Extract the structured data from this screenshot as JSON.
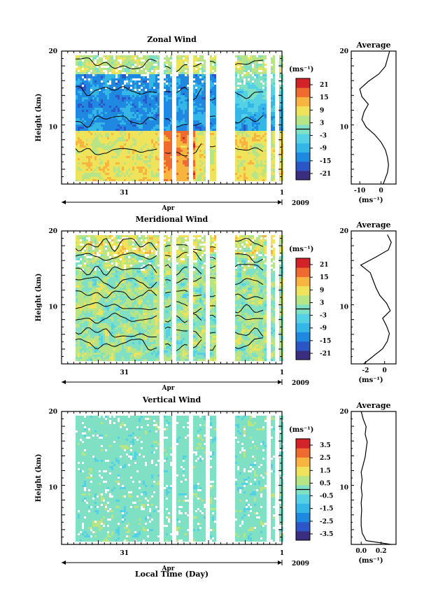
{
  "colors": {
    "palette": [
      "#3b2e7e",
      "#2c55c8",
      "#1f88e0",
      "#34b6e6",
      "#55d1e6",
      "#7fe0c4",
      "#b6e486",
      "#eee35a",
      "#f7b43e",
      "#ee6a2e",
      "#d2232a"
    ],
    "zero_contour": "#000000",
    "missing": "#ffffff"
  },
  "chart_data": [
    {
      "type": "heatmap",
      "name_key": "zonal",
      "title": "Zonal Wind",
      "ylabel": "Height (km)",
      "yticks": [
        "20",
        "10"
      ],
      "ylim": [
        2.5,
        20
      ],
      "xticks": [
        "31",
        "1"
      ],
      "month_label": "Apr",
      "year_label": "2009",
      "xlabel": "",
      "colorbar_unit": "(ms⁻¹)",
      "colorbar_labels": [
        "21",
        "15",
        "9",
        "3",
        "-3",
        "-9",
        "-15",
        "-21"
      ],
      "colorbar_range": [
        -24,
        24
      ],
      "data_gaps_fraction_of_time": [
        [
          0.0,
          0.06
        ],
        [
          0.435,
          0.46
        ],
        [
          0.5,
          0.515
        ],
        [
          0.575,
          0.59
        ],
        [
          0.645,
          0.665
        ],
        [
          0.7,
          0.78
        ],
        [
          0.925,
          0.94
        ],
        [
          0.965,
          0.985
        ]
      ],
      "profile": {
        "title": "Average",
        "xlabel": "(ms⁻¹)",
        "xticks": [
          "-10",
          "0"
        ],
        "xlim": [
          -14,
          7
        ],
        "heights": [
          2.5,
          4,
          5,
          6,
          7,
          8,
          9,
          10,
          11,
          12,
          13,
          14,
          15,
          16,
          17,
          18,
          19,
          20
        ],
        "values": [
          1.0,
          3.0,
          3.5,
          3.0,
          2.0,
          0.0,
          -3.0,
          -7.0,
          -9.0,
          -8.0,
          -6.0,
          -9.0,
          -10.0,
          -6.0,
          -1.0,
          2.0,
          3.0,
          4.0
        ]
      }
    },
    {
      "type": "heatmap",
      "name_key": "meridional",
      "title": "Meridional Wind",
      "ylabel": "Height (km)",
      "yticks": [
        "20",
        "10"
      ],
      "ylim": [
        2.5,
        20
      ],
      "xticks": [
        "31",
        "1"
      ],
      "month_label": "Apr",
      "year_label": "2009",
      "xlabel": "",
      "colorbar_unit": "(ms⁻¹)",
      "colorbar_labels": [
        "21",
        "15",
        "9",
        "3",
        "-3",
        "-9",
        "-15",
        "-21"
      ],
      "colorbar_range": [
        -24,
        24
      ],
      "data_gaps_fraction_of_time": [
        [
          0.0,
          0.06
        ],
        [
          0.435,
          0.46
        ],
        [
          0.5,
          0.515
        ],
        [
          0.575,
          0.59
        ],
        [
          0.645,
          0.665
        ],
        [
          0.7,
          0.78
        ],
        [
          0.925,
          0.94
        ],
        [
          0.965,
          0.985
        ]
      ],
      "profile": {
        "title": "Average",
        "xlabel": "(ms⁻¹)",
        "xticks": [
          "-2",
          "0"
        ],
        "xlim": [
          -3.5,
          1.2
        ],
        "heights": [
          2.5,
          3.5,
          4.5,
          5.5,
          6.5,
          7.5,
          8.5,
          9.5,
          10.5,
          11.5,
          12.5,
          13.5,
          14.5,
          15.5,
          16.5,
          17.5,
          18.5,
          19.5
        ],
        "values": [
          -2.2,
          -1.2,
          -0.2,
          0.3,
          0.5,
          0.2,
          -0.2,
          0.6,
          0.2,
          -0.5,
          -0.9,
          -1.2,
          -1.5,
          -2.5,
          -1.0,
          0.4,
          0.7,
          0.3
        ]
      }
    },
    {
      "type": "heatmap",
      "name_key": "vertical",
      "title": "Vertical Wind",
      "ylabel": "Height (km)",
      "yticks": [
        "20",
        "10"
      ],
      "ylim": [
        2.5,
        20
      ],
      "xticks": [
        "31",
        "1"
      ],
      "month_label": "Apr",
      "year_label": "2009",
      "xlabel": "Local Time (Day)",
      "colorbar_unit": "(ms⁻¹)",
      "colorbar_labels": [
        "3.5",
        "2.5",
        "1.5",
        "0.5",
        "-0.5",
        "-1.5",
        "-2.5",
        "-3.5"
      ],
      "colorbar_range": [
        -4,
        4
      ],
      "data_gaps_fraction_of_time": [
        [
          0.0,
          0.06
        ],
        [
          0.435,
          0.46
        ],
        [
          0.5,
          0.515
        ],
        [
          0.575,
          0.59
        ],
        [
          0.645,
          0.665
        ],
        [
          0.7,
          0.78
        ],
        [
          0.925,
          0.94
        ],
        [
          0.965,
          0.985
        ]
      ],
      "profile": {
        "title": "Average",
        "xlabel": "(ms⁻¹)",
        "xticks": [
          "0.0",
          "0.2"
        ],
        "xlim": [
          -0.1,
          0.35
        ],
        "heights": [
          2.5,
          3,
          4,
          5,
          6,
          7,
          8,
          9,
          10,
          11,
          12,
          13,
          14,
          15,
          16,
          17,
          18,
          19,
          20
        ],
        "values": [
          0.3,
          0.05,
          0.01,
          0.0,
          0.0,
          0.005,
          0.0,
          0.01,
          0.0,
          0.01,
          0.0,
          0.02,
          0.04,
          0.05,
          0.06,
          0.04,
          0.05,
          0.02,
          0.0
        ]
      }
    }
  ]
}
